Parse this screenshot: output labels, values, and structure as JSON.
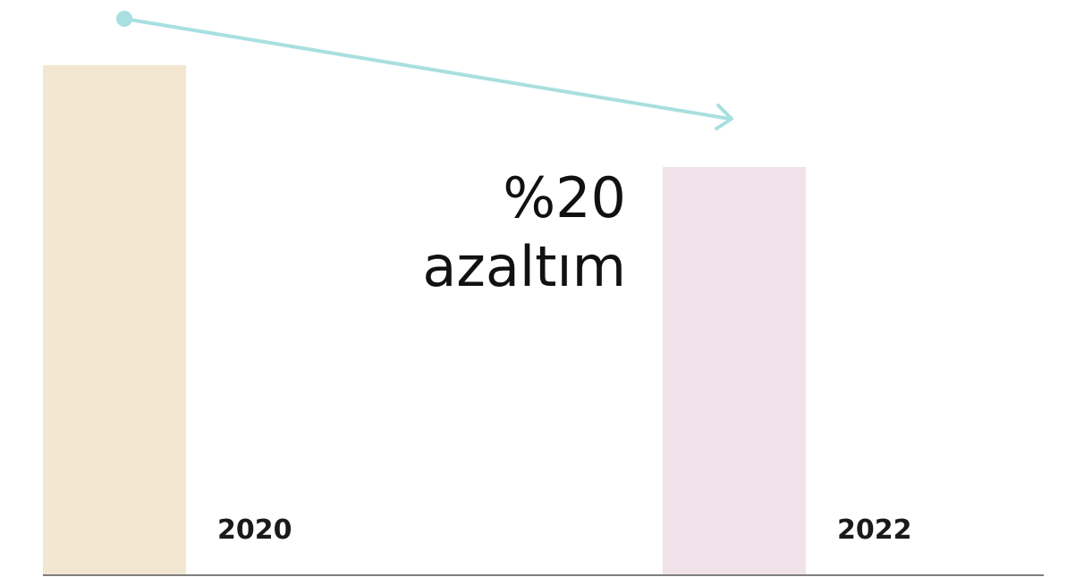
{
  "chart_data": {
    "type": "bar",
    "categories": [
      "2020",
      "2022"
    ],
    "values": [
      100,
      80
    ],
    "colors": [
      "#f3e7d1",
      "#f0e2e8"
    ],
    "ylim": [
      0,
      100
    ],
    "annotation": [
      "%20",
      "azaltım"
    ],
    "arrow_color": "#a8dfe0"
  }
}
